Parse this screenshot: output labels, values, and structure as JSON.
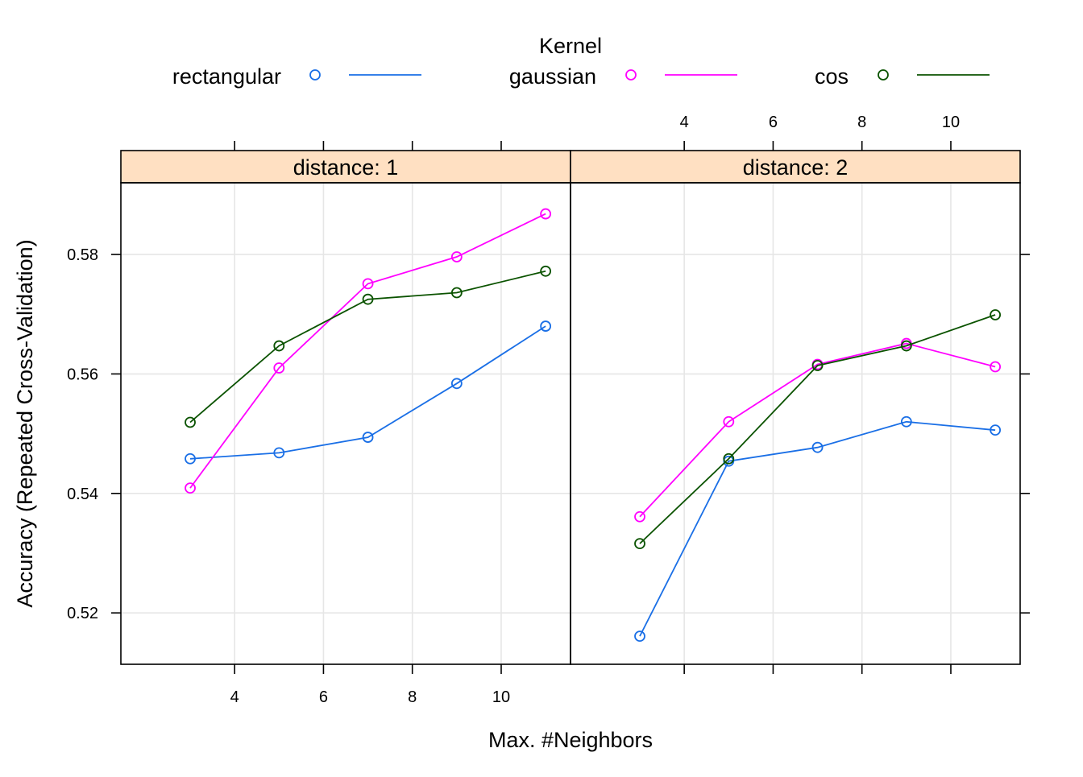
{
  "chart_data": {
    "type": "line",
    "legend": {
      "title": "Kernel",
      "placement": "top",
      "entries": [
        {
          "name": "rectangular",
          "color": "#1a6fe6"
        },
        {
          "name": "gaussian",
          "color": "#ff00ff"
        },
        {
          "name": "cos",
          "color": "#0b5300"
        }
      ]
    },
    "xlabel": "Max. #Neighbors",
    "ylabel": "Accuracy (Repeated Cross-Validation)",
    "x": [
      3,
      5,
      7,
      9,
      11
    ],
    "xlim": [
      1.44,
      11.56
    ],
    "ylim": [
      0.5114,
      0.592
    ],
    "x_ticks": [
      4,
      6,
      8,
      10
    ],
    "y_ticks": [
      0.52,
      0.54,
      0.56,
      0.58
    ],
    "y_tick_labels": [
      "0.52",
      "0.54",
      "0.56",
      "0.58"
    ],
    "grid": true,
    "strip_color": "#ffe0c2",
    "panels": [
      {
        "label": "distance: 1",
        "series": [
          {
            "name": "rectangular",
            "values": [
              0.5458,
              0.5468,
              0.5494,
              0.5584,
              0.568
            ]
          },
          {
            "name": "gaussian",
            "values": [
              0.5409,
              0.561,
              0.5751,
              0.5796,
              0.5868
            ]
          },
          {
            "name": "cos",
            "values": [
              0.5519,
              0.5647,
              0.5725,
              0.5736,
              0.5772
            ]
          }
        ]
      },
      {
        "label": "distance: 2",
        "series": [
          {
            "name": "rectangular",
            "values": [
              0.5161,
              0.5454,
              0.5477,
              0.552,
              0.5506
            ]
          },
          {
            "name": "gaussian",
            "values": [
              0.5361,
              0.552,
              0.5616,
              0.5651,
              0.5612
            ]
          },
          {
            "name": "cos",
            "values": [
              0.5316,
              0.5458,
              0.5614,
              0.5647,
              0.5699
            ]
          }
        ]
      }
    ]
  }
}
